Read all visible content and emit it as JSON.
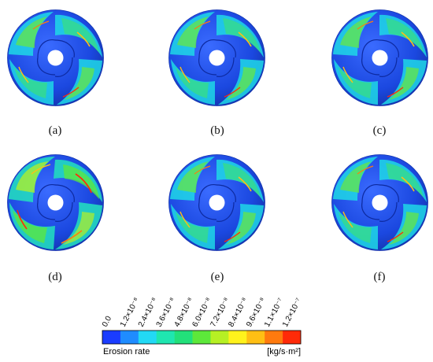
{
  "panels": [
    {
      "label": "(a)"
    },
    {
      "label": "(b)"
    },
    {
      "label": "(c)"
    },
    {
      "label": "(d)"
    },
    {
      "label": "(e)"
    },
    {
      "label": "(f)"
    }
  ],
  "legend": {
    "title": "Erosion rate",
    "unit": "[kg/s·m²]",
    "ticks": [
      "0.0",
      "1.2×10⁻⁸",
      "2.4×10⁻⁸",
      "3.6×10⁻⁸",
      "4.8×10⁻⁸",
      "6.0×10⁻⁸",
      "7.2×10⁻⁸",
      "8.4×10⁻⁸",
      "9.6×10⁻⁸",
      "1.1×10⁻⁷",
      "1.2×10⁻⁷"
    ],
    "colors": [
      "#1a3cff",
      "#1f8cff",
      "#22d9f5",
      "#1fe6b0",
      "#22e07a",
      "#5de83a",
      "#b6f024",
      "#fff21c",
      "#ffbf14",
      "#ff7a0e",
      "#ff2a08"
    ]
  }
}
